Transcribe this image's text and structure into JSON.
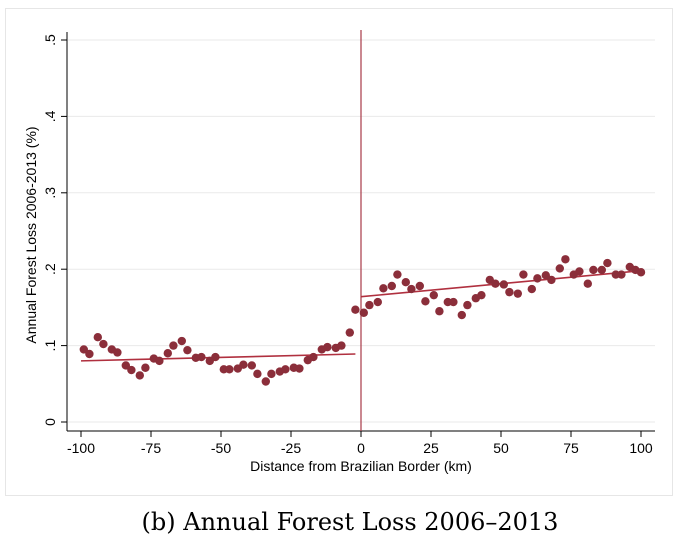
{
  "caption": "(b) Annual Forest Loss 2006–2013",
  "chart_data": {
    "type": "scatter",
    "xlabel": "Distance from Brazilian Border (km)",
    "ylabel": "Annual Forest Loss 2006-2013 (%)",
    "xlim": [
      -100,
      100
    ],
    "ylim": [
      0,
      0.5
    ],
    "xticks": [
      -100,
      -75,
      -50,
      -25,
      0,
      25,
      50,
      75,
      100
    ],
    "xtick_labels": [
      "-100",
      "-75",
      "-50",
      "-25",
      "0",
      "25",
      "50",
      "75",
      "100"
    ],
    "yticks": [
      0,
      0.1,
      0.2,
      0.3,
      0.4,
      0.5
    ],
    "ytick_labels": [
      "0",
      ".1",
      ".2",
      ".3",
      ".4",
      ".5"
    ],
    "grid": true,
    "marker_color": "#8b2e3a",
    "fit_color": "#b0303f",
    "cutoff_color": "#a83a48",
    "cutoff_x": 0,
    "points": [
      [
        -99,
        0.095
      ],
      [
        -97,
        0.089
      ],
      [
        -94,
        0.111
      ],
      [
        -92,
        0.102
      ],
      [
        -89,
        0.095
      ],
      [
        -87,
        0.091
      ],
      [
        -84,
        0.074
      ],
      [
        -82,
        0.068
      ],
      [
        -79,
        0.061
      ],
      [
        -77,
        0.071
      ],
      [
        -74,
        0.083
      ],
      [
        -72,
        0.08
      ],
      [
        -69,
        0.09
      ],
      [
        -67,
        0.1
      ],
      [
        -64,
        0.106
      ],
      [
        -62,
        0.094
      ],
      [
        -59,
        0.084
      ],
      [
        -57,
        0.085
      ],
      [
        -54,
        0.08
      ],
      [
        -52,
        0.085
      ],
      [
        -49,
        0.069
      ],
      [
        -47,
        0.069
      ],
      [
        -44,
        0.07
      ],
      [
        -42,
        0.075
      ],
      [
        -39,
        0.074
      ],
      [
        -37,
        0.063
      ],
      [
        -34,
        0.053
      ],
      [
        -32,
        0.063
      ],
      [
        -29,
        0.066
      ],
      [
        -27,
        0.069
      ],
      [
        -24,
        0.071
      ],
      [
        -22,
        0.07
      ],
      [
        -19,
        0.081
      ],
      [
        -17,
        0.085
      ],
      [
        -14,
        0.095
      ],
      [
        -12,
        0.098
      ],
      [
        -9,
        0.097
      ],
      [
        -7,
        0.1
      ],
      [
        -4,
        0.117
      ],
      [
        -2,
        0.147
      ],
      [
        1,
        0.143
      ],
      [
        3,
        0.153
      ],
      [
        6,
        0.157
      ],
      [
        8,
        0.175
      ],
      [
        11,
        0.178
      ],
      [
        13,
        0.193
      ],
      [
        16,
        0.183
      ],
      [
        18,
        0.174
      ],
      [
        21,
        0.178
      ],
      [
        23,
        0.158
      ],
      [
        26,
        0.166
      ],
      [
        28,
        0.145
      ],
      [
        31,
        0.157
      ],
      [
        33,
        0.157
      ],
      [
        36,
        0.14
      ],
      [
        38,
        0.153
      ],
      [
        41,
        0.162
      ],
      [
        43,
        0.166
      ],
      [
        46,
        0.186
      ],
      [
        48,
        0.181
      ],
      [
        51,
        0.18
      ],
      [
        53,
        0.17
      ],
      [
        56,
        0.168
      ],
      [
        58,
        0.193
      ],
      [
        61,
        0.174
      ],
      [
        63,
        0.188
      ],
      [
        66,
        0.192
      ],
      [
        68,
        0.186
      ],
      [
        71,
        0.201
      ],
      [
        73,
        0.213
      ],
      [
        76,
        0.193
      ],
      [
        78,
        0.197
      ],
      [
        81,
        0.181
      ],
      [
        83,
        0.199
      ],
      [
        86,
        0.199
      ],
      [
        88,
        0.208
      ],
      [
        91,
        0.193
      ],
      [
        93,
        0.193
      ],
      [
        96,
        0.203
      ],
      [
        98,
        0.199
      ],
      [
        100,
        0.196
      ]
    ],
    "fit_left": [
      [
        -100,
        0.08
      ],
      [
        -2,
        0.089
      ]
    ],
    "fit_right": [
      [
        0,
        0.164
      ],
      [
        100,
        0.198
      ]
    ]
  }
}
